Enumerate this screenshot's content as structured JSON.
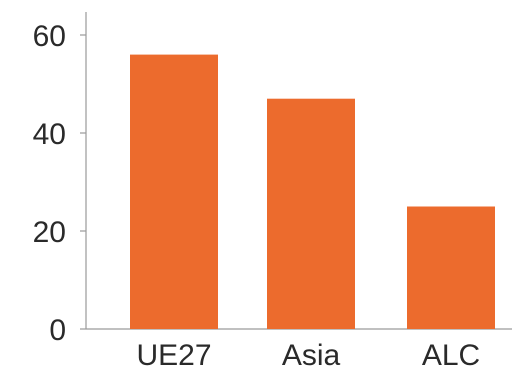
{
  "chart_data": {
    "type": "bar",
    "categories": [
      "UE27",
      "Asia",
      "ALC"
    ],
    "values": [
      56,
      47,
      25
    ],
    "title": "",
    "xlabel": "",
    "ylabel": "",
    "ylim": [
      0,
      60
    ],
    "yticks": [
      0,
      20,
      40,
      60
    ],
    "grid": false,
    "colors": {
      "bar": "#ec6b2d",
      "axis": "#9a9a9a",
      "text": "#2a2a2a"
    }
  }
}
